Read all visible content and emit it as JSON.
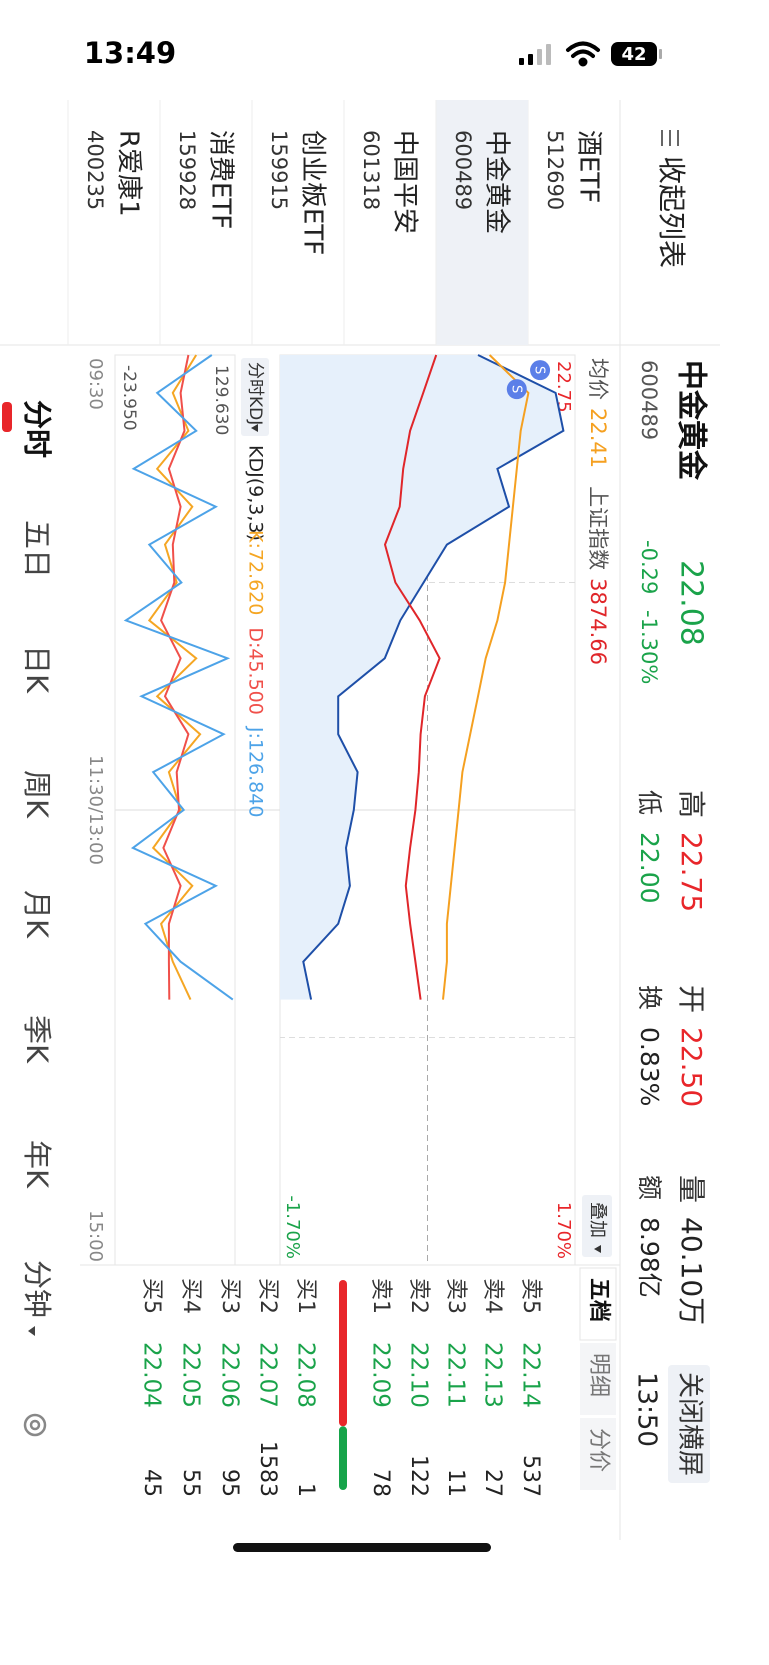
{
  "status_bar": {
    "time": "13:49",
    "battery": "42"
  },
  "header": {
    "name": "中金黄金",
    "code": "600489",
    "price": "22.08",
    "change": "-0.29",
    "change_pct": "-1.30%",
    "stats": [
      {
        "label": "高",
        "value": "22.75",
        "color": "#e8262a"
      },
      {
        "label": "低",
        "value": "22.00",
        "color": "#1aa34a"
      },
      {
        "label": "开",
        "value": "22.50",
        "color": "#e8262a"
      },
      {
        "label": "换",
        "value": "0.83%",
        "color": "#222222"
      },
      {
        "label": "量",
        "value": "40.10万",
        "color": "#222222"
      },
      {
        "label": "额",
        "value": "8.98亿",
        "color": "#222222"
      }
    ],
    "button": "关闭横屏",
    "clock": "13:50"
  },
  "list": {
    "title": "收起列表",
    "items": [
      {
        "name": "酒ETF",
        "code": "512690"
      },
      {
        "name": "中金黄金",
        "code": "600489"
      },
      {
        "name": "中国平安",
        "code": "601318"
      },
      {
        "name": "创业板ETF",
        "code": "159915"
      },
      {
        "name": "消费ETF",
        "code": "159928"
      },
      {
        "name": "R爱康1",
        "code": "400235"
      }
    ],
    "selected": 1
  },
  "chart_data": [
    {
      "type": "line",
      "overlay": "叠加",
      "x": [
        0,
        10,
        20,
        30,
        40,
        50,
        60,
        70,
        80,
        90,
        100,
        110,
        120,
        130,
        140,
        150,
        160,
        170
      ],
      "xlim": [
        0,
        240
      ],
      "xticks": [
        {
          "value": 0,
          "label": "09:30"
        },
        {
          "value": 120,
          "label": "11:30/13:00"
        },
        {
          "value": 240,
          "label": "15:00"
        }
      ],
      "ylim": [
        21.99,
        22.75
      ],
      "yticks": [
        21.99,
        22.37,
        22.75
      ],
      "y2lim": [
        -1.7,
        1.7
      ],
      "y2ticks": [
        {
          "value": -1.7,
          "label": "-1.70%"
        },
        {
          "value": 1.7,
          "label": "1.70%"
        }
      ],
      "series": [
        {
          "color": "#1e4fa8",
          "area": "#e6f0fb",
          "values": [
            22.5,
            22.7,
            22.72,
            22.55,
            22.58,
            22.42,
            22.36,
            22.3,
            22.26,
            22.14,
            22.14,
            22.19,
            22.18,
            22.16,
            22.17,
            22.14,
            22.05,
            22.07
          ]
        },
        {
          "name": "均价",
          "current": "22.41",
          "color": "#f5a020",
          "values": [
            22.53,
            22.63,
            22.61,
            22.6,
            22.59,
            22.58,
            22.57,
            22.55,
            22.52,
            22.5,
            22.48,
            22.46,
            22.45,
            22.44,
            22.43,
            22.42,
            22.42,
            22.41
          ]
        },
        {
          "name": "上证指数",
          "current": "3874.66",
          "color": "#e0262a",
          "axis": "y2",
          "values": [
            0.1,
            -0.05,
            -0.2,
            -0.28,
            -0.32,
            -0.49,
            -0.37,
            -0.09,
            0.14,
            -0.03,
            -0.08,
            -0.1,
            -0.14,
            -0.2,
            -0.25,
            -0.2,
            -0.14,
            -0.08
          ]
        }
      ],
      "annotations": [
        {
          "label": "S",
          "x": 4,
          "y": 22.66
        },
        {
          "label": "S",
          "x": 9,
          "y": 22.6
        }
      ]
    },
    {
      "type": "line",
      "selector": "分时KDJ",
      "title": "KDJ(9,3,3)",
      "x": [
        0,
        10,
        20,
        30,
        40,
        50,
        60,
        70,
        80,
        90,
        100,
        110,
        120,
        130,
        140,
        150,
        160,
        170
      ],
      "xlim": [
        0,
        240
      ],
      "ylim": [
        -23.95,
        129.63
      ],
      "yticks": [
        {
          "value": 129.63,
          "label": "129.630"
        },
        {
          "value": -23.95,
          "label": "-23.950"
        }
      ],
      "series": [
        {
          "name": "K:72.620",
          "color": "#f5a623",
          "values": [
            80,
            50,
            70,
            30,
            75,
            40,
            55,
            20,
            80,
            30,
            85,
            45,
            60,
            25,
            75,
            35,
            50,
            72.62
          ]
        },
        {
          "name": "D:45.500",
          "color": "#f0504a",
          "values": [
            70,
            60,
            65,
            45,
            60,
            50,
            52,
            35,
            60,
            40,
            70,
            55,
            58,
            38,
            60,
            45,
            45,
            45.5
          ]
        },
        {
          "name": "J:126.840",
          "color": "#4da3e8",
          "values": [
            100,
            30,
            80,
            0,
            105,
            20,
            61,
            -10,
            120,
            10,
            115,
            25,
            64,
            -1,
            105,
            15,
            60,
            126.84
          ]
        }
      ]
    }
  ],
  "order_book": {
    "tabs": [
      "五档",
      "明细",
      "分价"
    ],
    "asks": [
      {
        "label": "卖5",
        "price": "22.14",
        "volume": 537
      },
      {
        "label": "卖4",
        "price": "22.13",
        "volume": 27
      },
      {
        "label": "卖3",
        "price": "22.11",
        "volume": 11
      },
      {
        "label": "卖2",
        "price": "22.10",
        "volume": 122
      },
      {
        "label": "卖1",
        "price": "22.09",
        "volume": 78
      }
    ],
    "bids": [
      {
        "label": "买1",
        "price": "22.08",
        "volume": 1
      },
      {
        "label": "买2",
        "price": "22.07",
        "volume": 1583
      },
      {
        "label": "买3",
        "price": "22.06",
        "volume": 95
      },
      {
        "label": "买4",
        "price": "22.05",
        "volume": 55
      },
      {
        "label": "买5",
        "price": "22.04",
        "volume": 45
      }
    ]
  },
  "tabs": [
    "分时",
    "五日",
    "日K",
    "周K",
    "月K",
    "季K",
    "年K",
    "分钟"
  ]
}
